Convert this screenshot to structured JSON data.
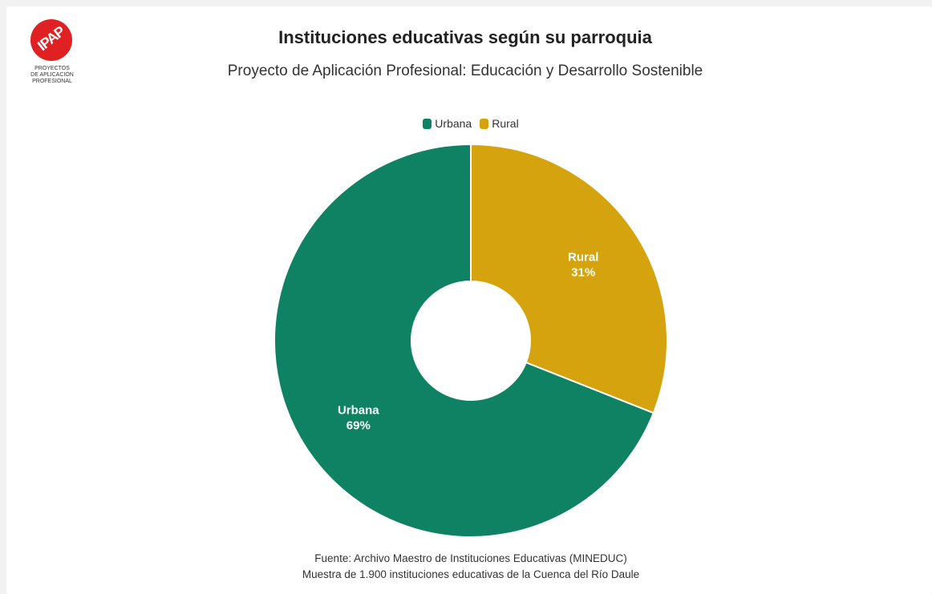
{
  "logo": {
    "mark_text": "IPAP",
    "caption_lines": [
      "PROYECTOS",
      "DE APLICACIÓN",
      "PROFESIONAL"
    ],
    "color": "#e02124"
  },
  "header": {
    "title": "Instituciones educativas según su parroquia",
    "subtitle": "Proyecto de Aplicación Profesional: Educación y Desarrollo Sostenible"
  },
  "footer": {
    "source_line1": "Fuente: Archivo Maestro de Instituciones Educativas (MINEDUC)",
    "source_line2": "Muestra de 1.900 instituciones educativas de la Cuenca del Río Daule"
  },
  "chart_data": {
    "type": "pie",
    "title": "Instituciones educativas según su parroquia",
    "subtitle": "Proyecto de Aplicación Profesional: Educación y Desarrollo Sostenible",
    "donut": true,
    "legend_position": "top-center",
    "slices": [
      {
        "label": "Urbana",
        "value": 69,
        "display": "69%",
        "color": "#0f8263"
      },
      {
        "label": "Rural",
        "value": 31,
        "display": "31%",
        "color": "#d4a30d"
      }
    ]
  }
}
